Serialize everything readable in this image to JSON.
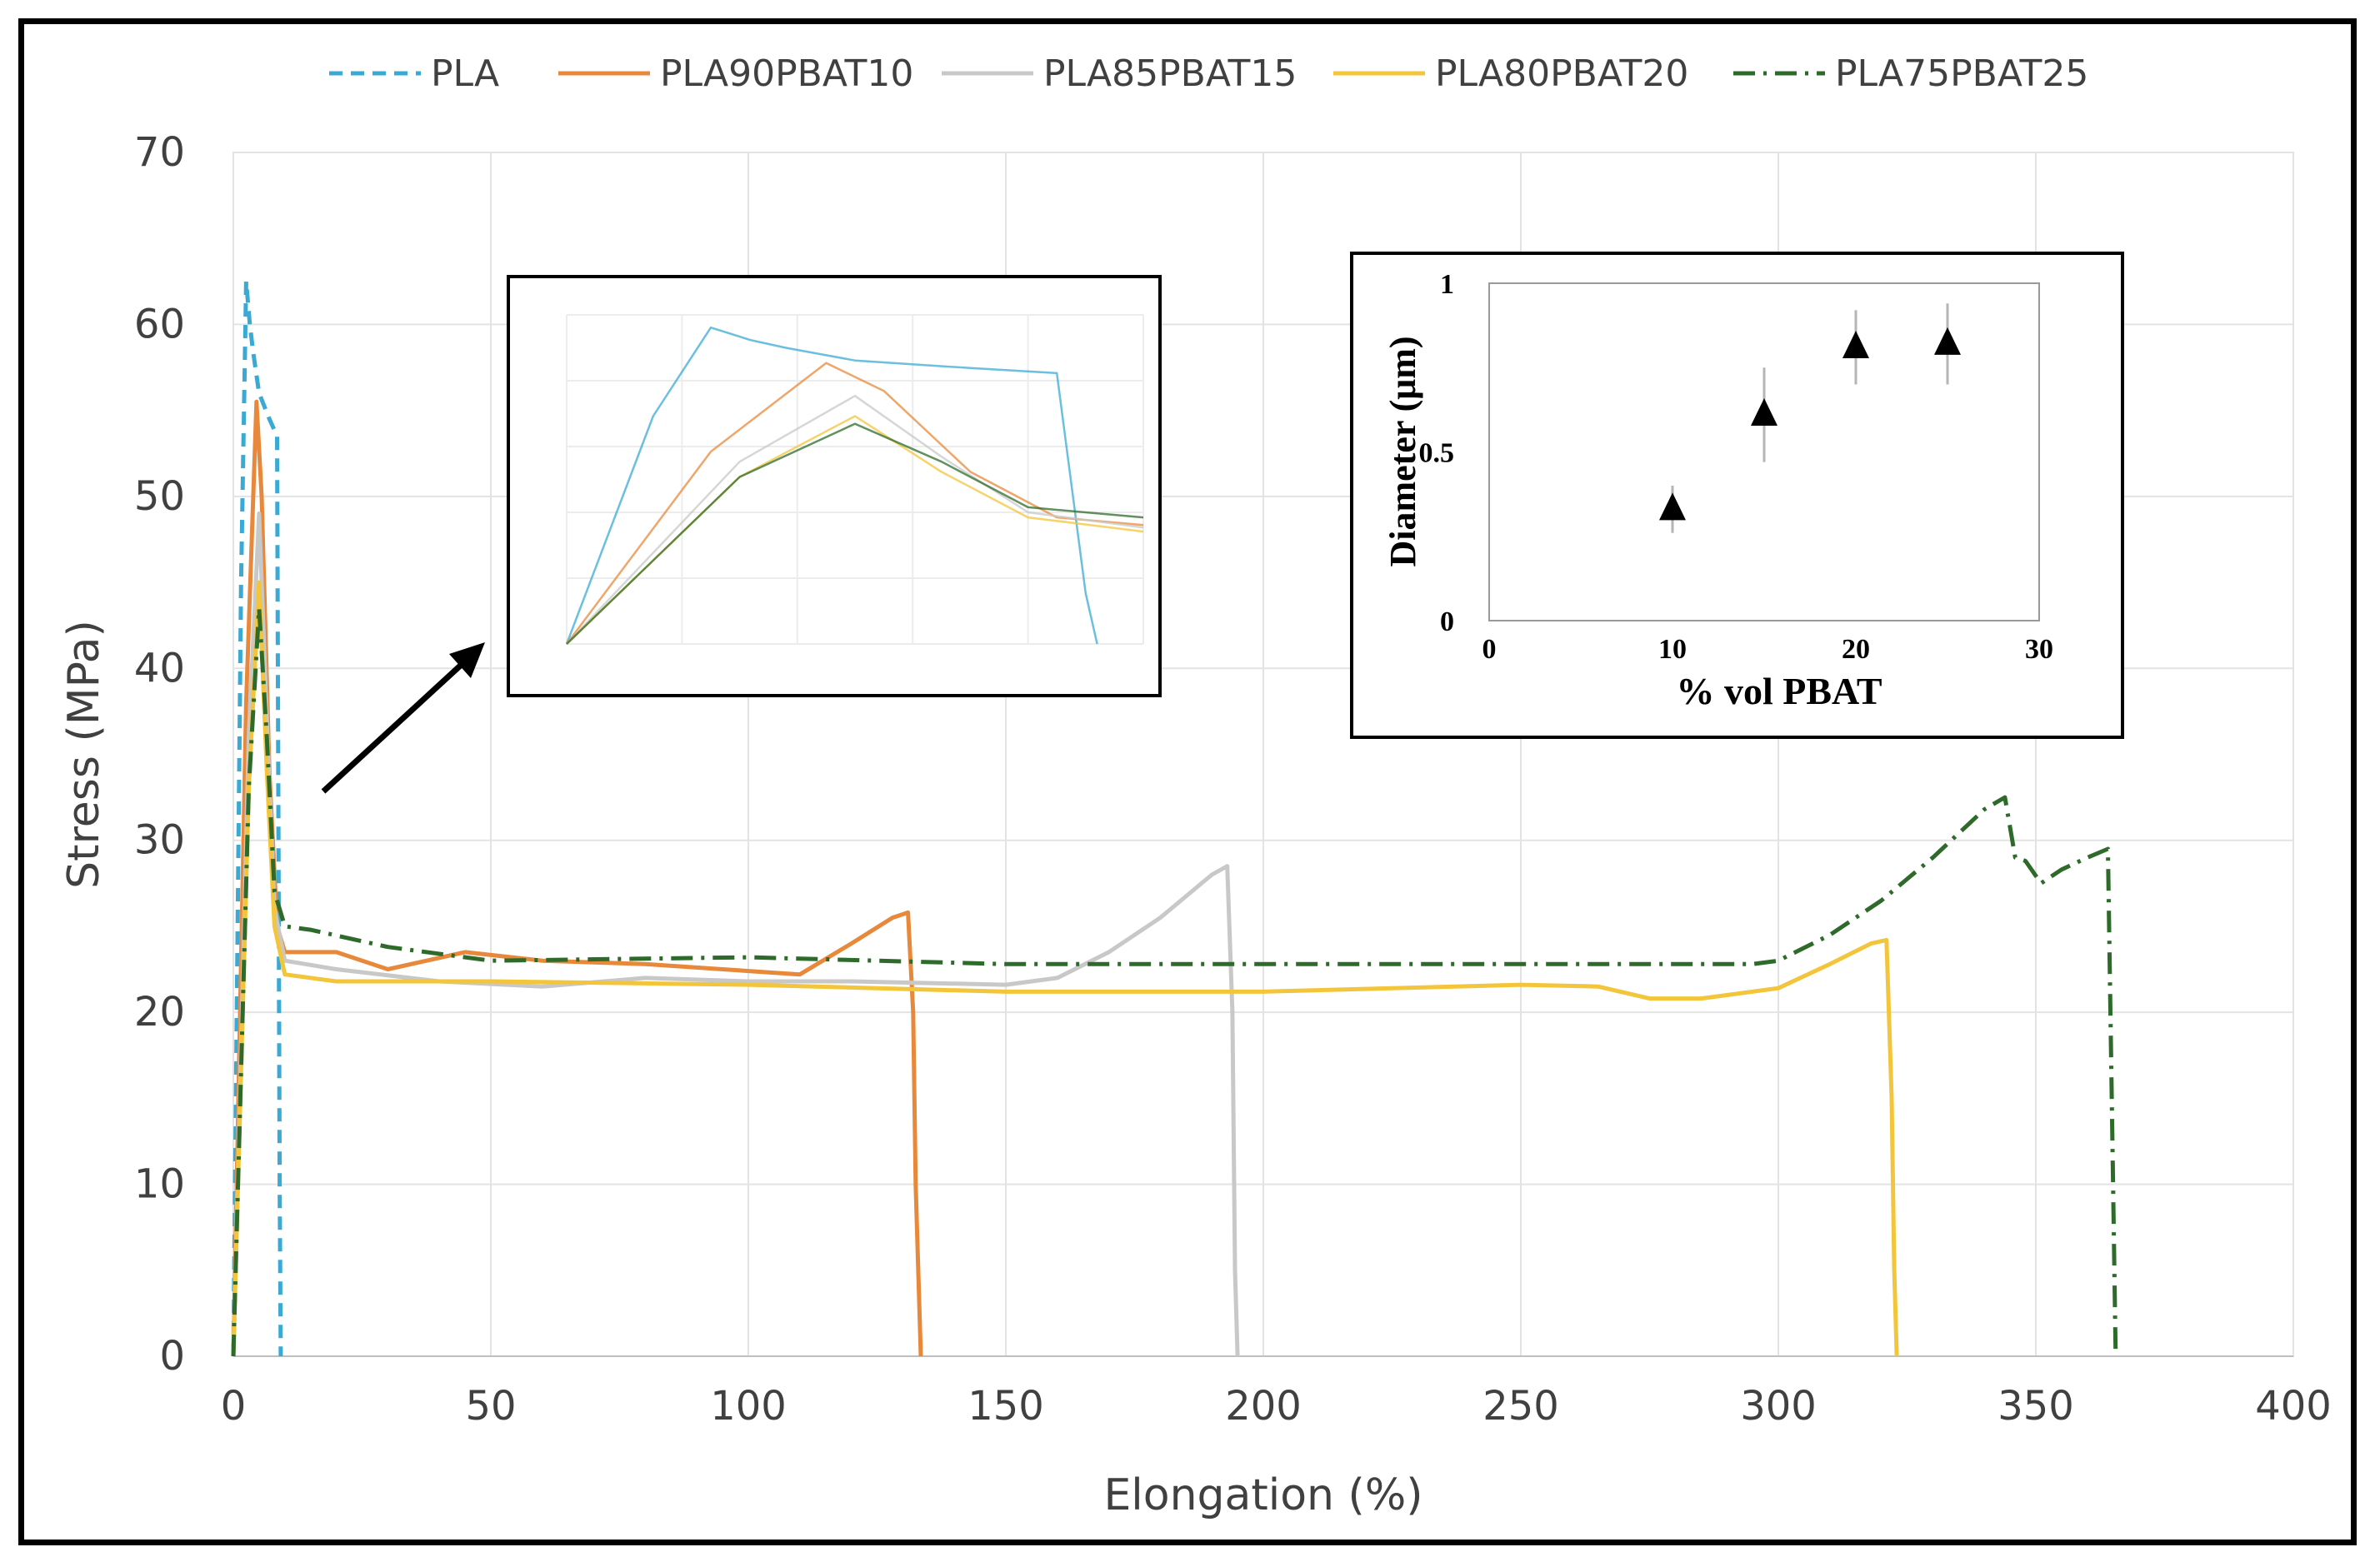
{
  "chart_data": [
    {
      "type": "line",
      "title": "",
      "xlabel": "Elongation (%)",
      "ylabel": "Stress (MPa)",
      "xlim": [
        0,
        400
      ],
      "ylim": [
        0,
        70
      ],
      "xticks": [
        0,
        50,
        100,
        150,
        200,
        250,
        300,
        350,
        400
      ],
      "yticks": [
        0,
        10,
        20,
        30,
        40,
        50,
        60,
        70
      ],
      "grid": true,
      "legend_position": "top",
      "series": [
        {
          "name": "PLA",
          "color": "#3aa9d4",
          "style": "dashed",
          "x": [
            0,
            1.5,
            2.5,
            3.2,
            3.8,
            5,
            7,
            8.5,
            9,
            9.2
          ],
          "y": [
            0,
            45,
            62.5,
            60,
            58.5,
            56,
            54.5,
            53.5,
            10,
            0
          ]
        },
        {
          "name": "PLA90PBAT10",
          "color": "#e8883a",
          "style": "solid",
          "x": [
            0,
            2.5,
            4.5,
            5.5,
            7,
            8.5,
            10,
            20,
            30,
            45,
            60,
            80,
            95,
            110,
            120,
            128,
            131,
            132,
            132.5,
            133.5
          ],
          "y": [
            0,
            38,
            55.5,
            50,
            34,
            25,
            23.5,
            23.5,
            22.5,
            23.5,
            23.0,
            22.8,
            22.5,
            22.2,
            24.0,
            25.5,
            25.8,
            20,
            10,
            0
          ]
        },
        {
          "name": "PLA85PBAT15",
          "color": "#c8c8c8",
          "style": "solid",
          "x": [
            0,
            3,
            5,
            6.5,
            8,
            10,
            20,
            40,
            60,
            80,
            100,
            120,
            150,
            160,
            170,
            180,
            190,
            193,
            194,
            194.5,
            195
          ],
          "y": [
            0,
            36,
            49,
            37,
            26,
            23.0,
            22.5,
            21.8,
            21.5,
            22.0,
            21.8,
            21.8,
            21.6,
            22.0,
            23.5,
            25.5,
            28.0,
            28.5,
            20,
            5,
            0
          ]
        },
        {
          "name": "PLA80PBAT20",
          "color": "#f2c53a",
          "style": "solid",
          "x": [
            0,
            3,
            5,
            6.5,
            8,
            10,
            20,
            50,
            100,
            150,
            200,
            250,
            265,
            275,
            285,
            300,
            310,
            318,
            321,
            322,
            322.5,
            323
          ],
          "y": [
            0,
            33,
            45,
            34,
            25,
            22.2,
            21.8,
            21.8,
            21.6,
            21.2,
            21.2,
            21.6,
            21.5,
            20.8,
            20.8,
            21.4,
            22.8,
            24.0,
            24.2,
            15,
            5,
            0
          ]
        },
        {
          "name": "PLA75PBAT25",
          "color": "#2e6b2a",
          "style": "dashdot",
          "x": [
            0,
            3,
            5,
            6.5,
            8,
            10,
            15,
            30,
            50,
            100,
            150,
            200,
            250,
            295,
            300,
            310,
            320,
            330,
            340,
            344,
            346,
            348,
            351,
            355,
            360,
            364,
            365,
            365.5
          ],
          "y": [
            0,
            33,
            43.5,
            36,
            27,
            25.0,
            24.8,
            23.8,
            23.0,
            23.2,
            22.8,
            22.8,
            22.8,
            22.8,
            23.0,
            24.5,
            26.5,
            29.0,
            31.8,
            32.5,
            29.0,
            28.8,
            27.5,
            28.3,
            29.0,
            29.5,
            10,
            0
          ]
        }
      ]
    },
    {
      "type": "scatter",
      "title": "",
      "xlabel": "% vol PBAT",
      "ylabel": "Diameter (μm)",
      "xlim": [
        0,
        30
      ],
      "ylim": [
        0,
        1
      ],
      "xticks": [
        0,
        10,
        20,
        30
      ],
      "yticks": [
        0,
        0.5,
        1
      ],
      "ytick_labels": [
        "0",
        "0.5",
        "1"
      ],
      "grid": false,
      "marker": "triangle",
      "x": [
        10,
        15,
        20,
        25
      ],
      "y": [
        0.33,
        0.61,
        0.81,
        0.82
      ],
      "error": [
        0.07,
        0.14,
        0.11,
        0.12
      ]
    }
  ]
}
